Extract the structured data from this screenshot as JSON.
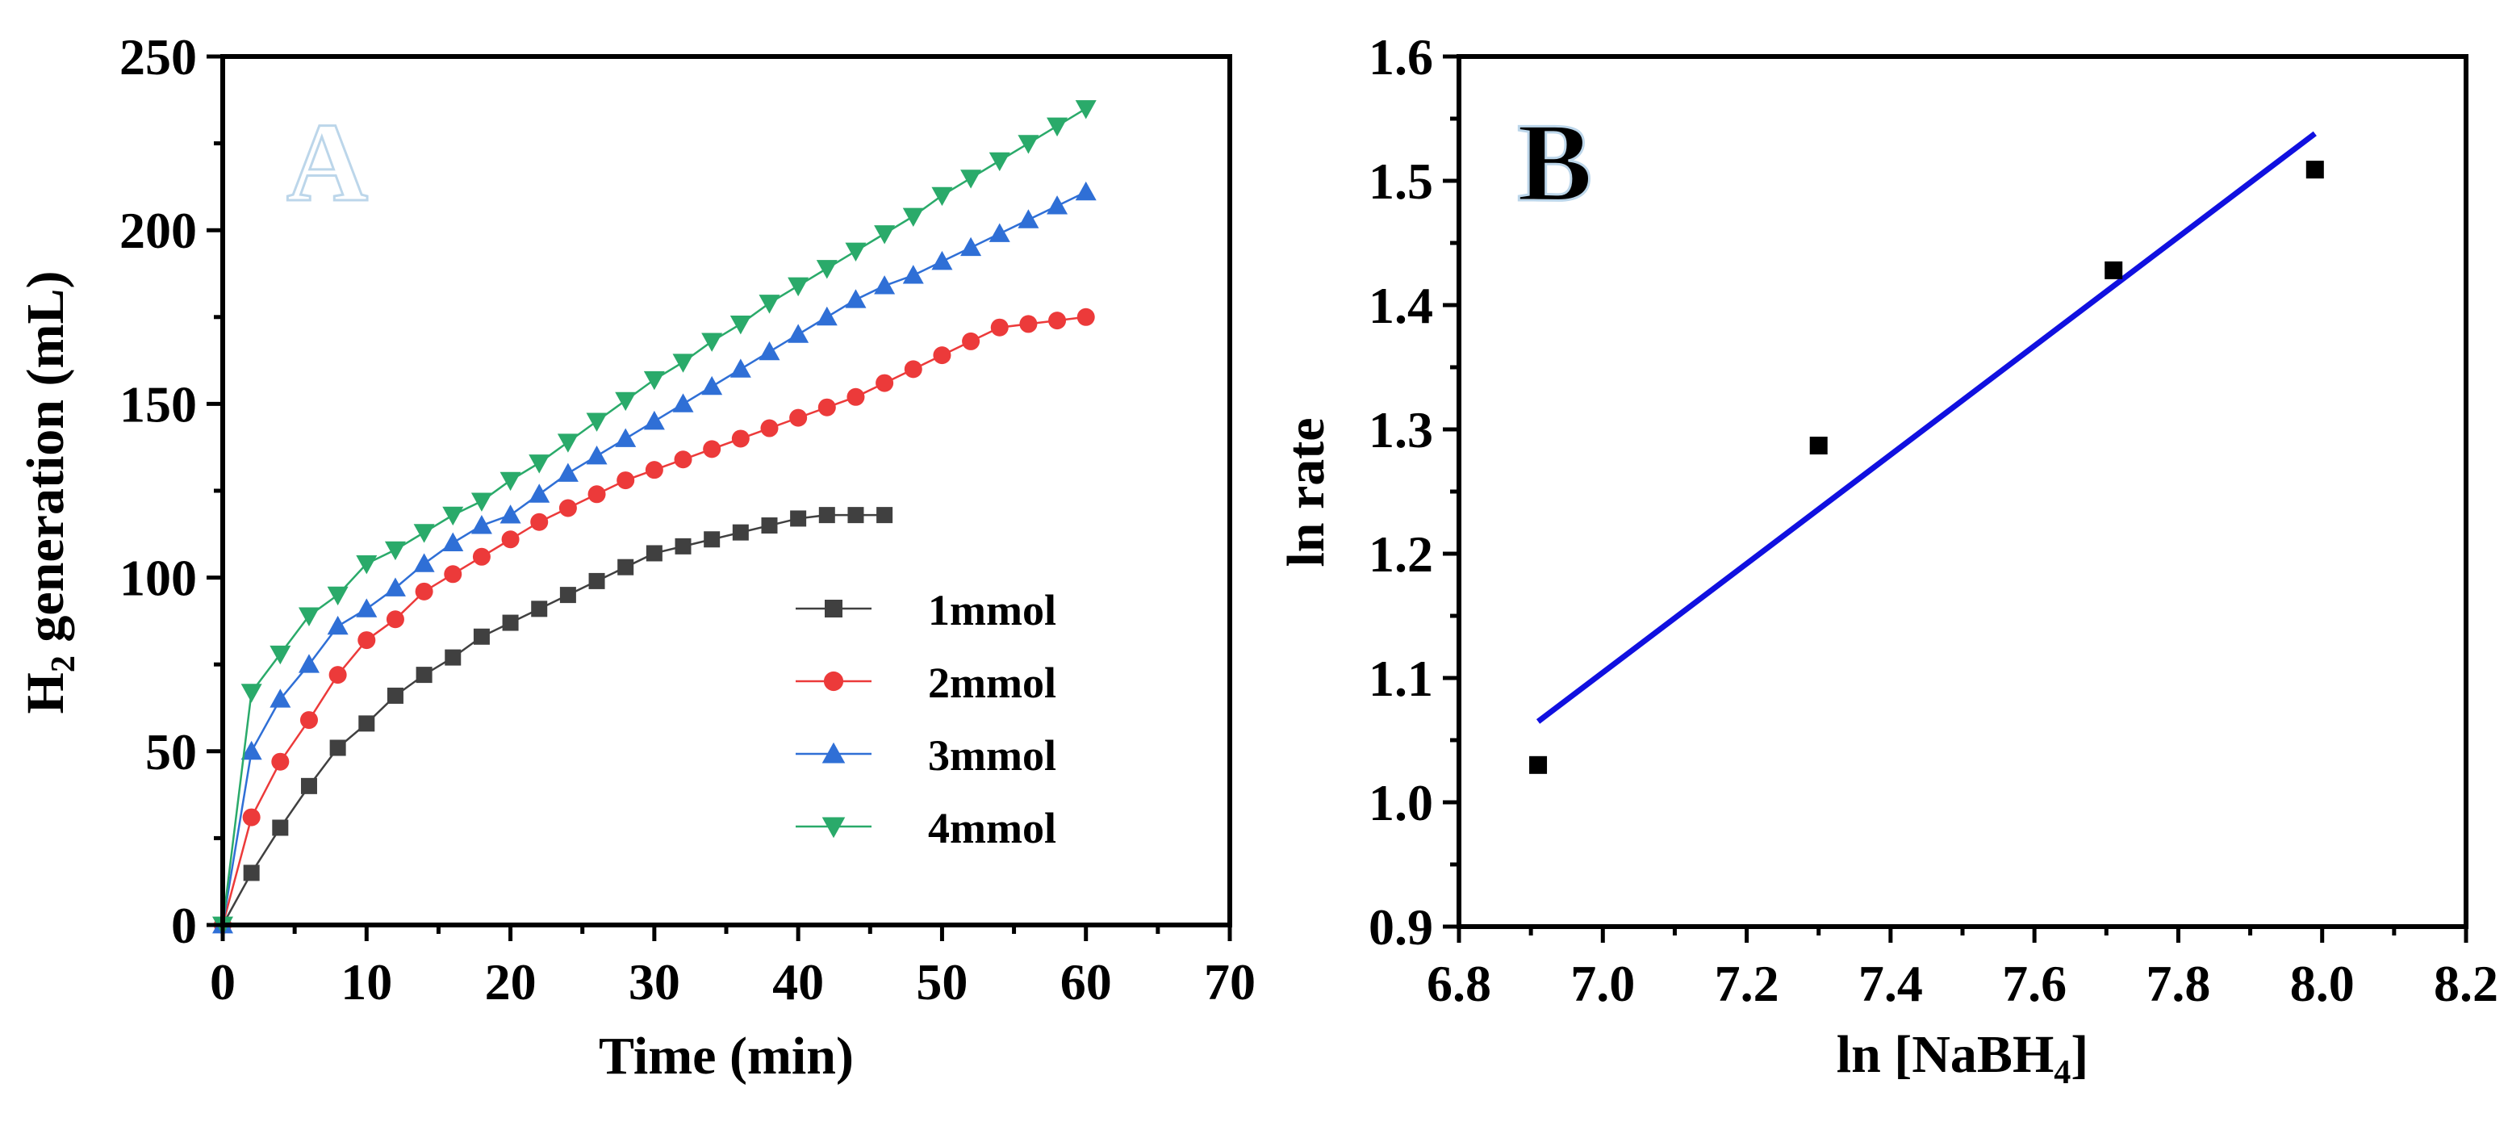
{
  "chart_data": [
    {
      "type": "line",
      "panel_label": "A",
      "title": "",
      "xlabel": "Time (min)",
      "ylabel_main": "H",
      "ylabel_sub": "2",
      "ylabel_rest": " generation (mL)",
      "xlim": [
        0,
        70
      ],
      "ylim": [
        0,
        250
      ],
      "xticks": [
        0,
        10,
        20,
        30,
        40,
        50,
        60,
        70
      ],
      "yticks": [
        0,
        50,
        100,
        150,
        200,
        250
      ],
      "legend_position": "center-right",
      "grid": false,
      "series": [
        {
          "name": "1mmol",
          "color": "#404040",
          "marker": "square",
          "x": [
            0,
            2,
            4,
            6,
            8,
            10,
            12,
            14,
            16,
            18,
            20,
            22,
            24,
            26,
            28,
            30,
            32,
            34,
            36,
            38,
            40,
            42,
            44,
            46
          ],
          "y": [
            0,
            15,
            28,
            40,
            51,
            58,
            66,
            72,
            77,
            83,
            87,
            91,
            95,
            99,
            103,
            107,
            109,
            111,
            113,
            115,
            117,
            118,
            118,
            118
          ]
        },
        {
          "name": "2mmol",
          "color": "#ec3a3a",
          "marker": "circle",
          "x": [
            0,
            2,
            4,
            6,
            8,
            10,
            12,
            14,
            16,
            18,
            20,
            22,
            24,
            26,
            28,
            30,
            32,
            34,
            36,
            38,
            40,
            42,
            44,
            46,
            48,
            50,
            52,
            54,
            56,
            58,
            60
          ],
          "y": [
            0,
            31,
            47,
            59,
            72,
            82,
            88,
            96,
            101,
            106,
            111,
            116,
            120,
            124,
            128,
            131,
            134,
            137,
            140,
            143,
            146,
            149,
            152,
            156,
            160,
            164,
            168,
            172,
            173,
            174,
            175
          ]
        },
        {
          "name": "3mmol",
          "color": "#2f6fd6",
          "marker": "triangle-up",
          "x": [
            0,
            2,
            4,
            6,
            8,
            10,
            12,
            14,
            16,
            18,
            20,
            22,
            24,
            26,
            28,
            30,
            32,
            34,
            36,
            38,
            40,
            42,
            44,
            46,
            48,
            50,
            52,
            54,
            56,
            58,
            60
          ],
          "y": [
            0,
            50,
            65,
            75,
            86,
            91,
            97,
            104,
            110,
            115,
            118,
            124,
            130,
            135,
            140,
            145,
            150,
            155,
            160,
            165,
            170,
            175,
            180,
            184,
            187,
            191,
            195,
            199,
            203,
            207,
            211
          ]
        },
        {
          "name": "4mmol",
          "color": "#2aaa6a",
          "marker": "triangle-down",
          "x": [
            0,
            2,
            4,
            6,
            8,
            10,
            12,
            14,
            16,
            18,
            20,
            22,
            24,
            26,
            28,
            30,
            32,
            34,
            36,
            38,
            40,
            42,
            44,
            46,
            48,
            50,
            52,
            54,
            56,
            58,
            60
          ],
          "y": [
            0,
            67,
            78,
            89,
            95,
            104,
            108,
            113,
            118,
            122,
            128,
            133,
            139,
            145,
            151,
            157,
            162,
            168,
            173,
            179,
            184,
            189,
            194,
            199,
            204,
            210,
            215,
            220,
            225,
            230,
            235
          ]
        }
      ]
    },
    {
      "type": "scatter",
      "panel_label": "B",
      "title": "",
      "xlabel_main": "ln [NaBH",
      "xlabel_sub": "4",
      "xlabel_rest": "]",
      "ylabel": "ln rate",
      "xlim": [
        6.8,
        8.2
      ],
      "ylim": [
        0.9,
        1.6
      ],
      "xticks": [
        "6.8",
        "7.0",
        "7.2",
        "7.4",
        "7.6",
        "7.8",
        "8.0",
        "8.2"
      ],
      "yticks": [
        "0.9",
        "1.0",
        "1.1",
        "1.2",
        "1.3",
        "1.4",
        "1.5",
        "1.6"
      ],
      "grid": false,
      "points": {
        "color": "#000000",
        "x": [
          6.91,
          7.3,
          7.71,
          7.99
        ],
        "y": [
          1.03,
          1.287,
          1.428,
          1.509
        ]
      },
      "fit_line": {
        "color": "#1010e0",
        "x": [
          6.91,
          7.99
        ],
        "y": [
          1.065,
          1.538
        ]
      }
    }
  ]
}
